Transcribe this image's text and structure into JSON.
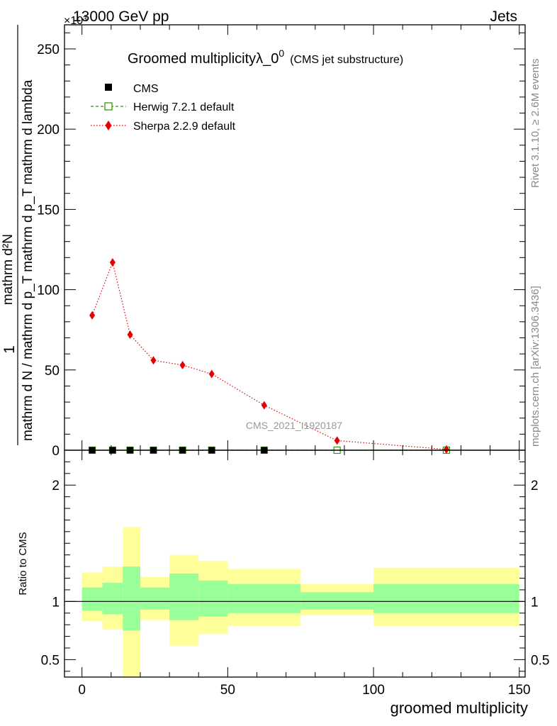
{
  "header": {
    "energy_label": "13000 GeV pp",
    "process_label": "Jets",
    "scale_label": "×10³"
  },
  "side_texts": {
    "rivet": "Rivet 3.1.10, ≥ 2.6M events",
    "site": "mcplots.cern.ch [arXiv:1306.3436]"
  },
  "watermark": "CMS_2021_I1920187",
  "chart_data": [
    {
      "type": "line",
      "title": "Groomed multiplicityλ_0",
      "title_sup": "0",
      "subtitle": "(CMS jet substructure)",
      "ylabel_top": "1",
      "ylabel_frac_num": "mathrm d²N",
      "ylabel_frac_den": "mathrm d N / mathrm d p_T mathrm d p_T mathrm d lambda",
      "ylim": [
        0,
        265
      ],
      "yticks": [
        "0",
        "50",
        "100",
        "150",
        "200",
        "250"
      ],
      "ytick_values": [
        0,
        50,
        100,
        150,
        200,
        250
      ],
      "xlim": [
        -6,
        152
      ],
      "legend_position": "top-left",
      "legend": [
        {
          "name": "CMS",
          "marker": "filled-square",
          "color": "#000000"
        },
        {
          "name": "Herwig 7.2.1 default",
          "marker": "open-square",
          "color": "#339900",
          "dash": "dashed"
        },
        {
          "name": "Sherpa 2.2.9 default",
          "marker": "diamond",
          "color": "#e60000",
          "dash": "dotted"
        }
      ],
      "series": [
        {
          "name": "CMS",
          "x": [
            3.5,
            10.5,
            16.5,
            24.5,
            34.5,
            44.5,
            62.5
          ],
          "y": [
            0,
            0,
            0,
            0,
            0,
            0,
            0
          ]
        },
        {
          "name": "Herwig 7.2.1 default",
          "x": [
            3.5,
            10.5,
            16.5,
            24.5,
            34.5,
            44.5,
            62.5,
            87.5,
            125
          ],
          "y": [
            0,
            0,
            0,
            0,
            0,
            0,
            0,
            0,
            0
          ]
        },
        {
          "name": "Sherpa 2.2.9 default",
          "x": [
            3.5,
            10.5,
            16.5,
            24.5,
            34.5,
            44.5,
            62.5,
            87.5,
            125
          ],
          "y": [
            84,
            117,
            72,
            56,
            53,
            47.5,
            28,
            6,
            0.5
          ]
        }
      ]
    },
    {
      "type": "area",
      "ylabel": "Ratio to CMS",
      "xlabel": "groomed multiplicity",
      "ylim": [
        0.35,
        2.3
      ],
      "xlim": [
        -6,
        152
      ],
      "xticks": [
        "0",
        "50",
        "100",
        "150"
      ],
      "xtick_values": [
        0,
        50,
        100,
        150
      ],
      "yticks": [
        "0.5",
        "1",
        "2"
      ],
      "ytick_values": [
        0.5,
        1,
        2
      ],
      "reference_line": 1,
      "bands": [
        {
          "x0": 0,
          "x1": 7,
          "outer": [
            0.83,
            1.25
          ],
          "inner": [
            0.92,
            1.12
          ]
        },
        {
          "x0": 7,
          "x1": 14,
          "outer": [
            0.76,
            1.3
          ],
          "inner": [
            0.89,
            1.16
          ]
        },
        {
          "x0": 14,
          "x1": 20,
          "outer": [
            0.35,
            1.64
          ],
          "inner": [
            0.75,
            1.3
          ]
        },
        {
          "x0": 20,
          "x1": 30,
          "outer": [
            0.84,
            1.21
          ],
          "inner": [
            0.93,
            1.12
          ]
        },
        {
          "x0": 30,
          "x1": 40,
          "outer": [
            0.62,
            1.4
          ],
          "inner": [
            0.84,
            1.24
          ]
        },
        {
          "x0": 40,
          "x1": 50,
          "outer": [
            0.72,
            1.35
          ],
          "inner": [
            0.87,
            1.18
          ]
        },
        {
          "x0": 50,
          "x1": 75,
          "outer": [
            0.79,
            1.28
          ],
          "inner": [
            0.9,
            1.15
          ]
        },
        {
          "x0": 75,
          "x1": 100,
          "outer": [
            0.88,
            1.15
          ],
          "inner": [
            0.93,
            1.08
          ]
        },
        {
          "x0": 100,
          "x1": 150,
          "outer": [
            0.79,
            1.29
          ],
          "inner": [
            0.9,
            1.15
          ]
        }
      ]
    }
  ]
}
